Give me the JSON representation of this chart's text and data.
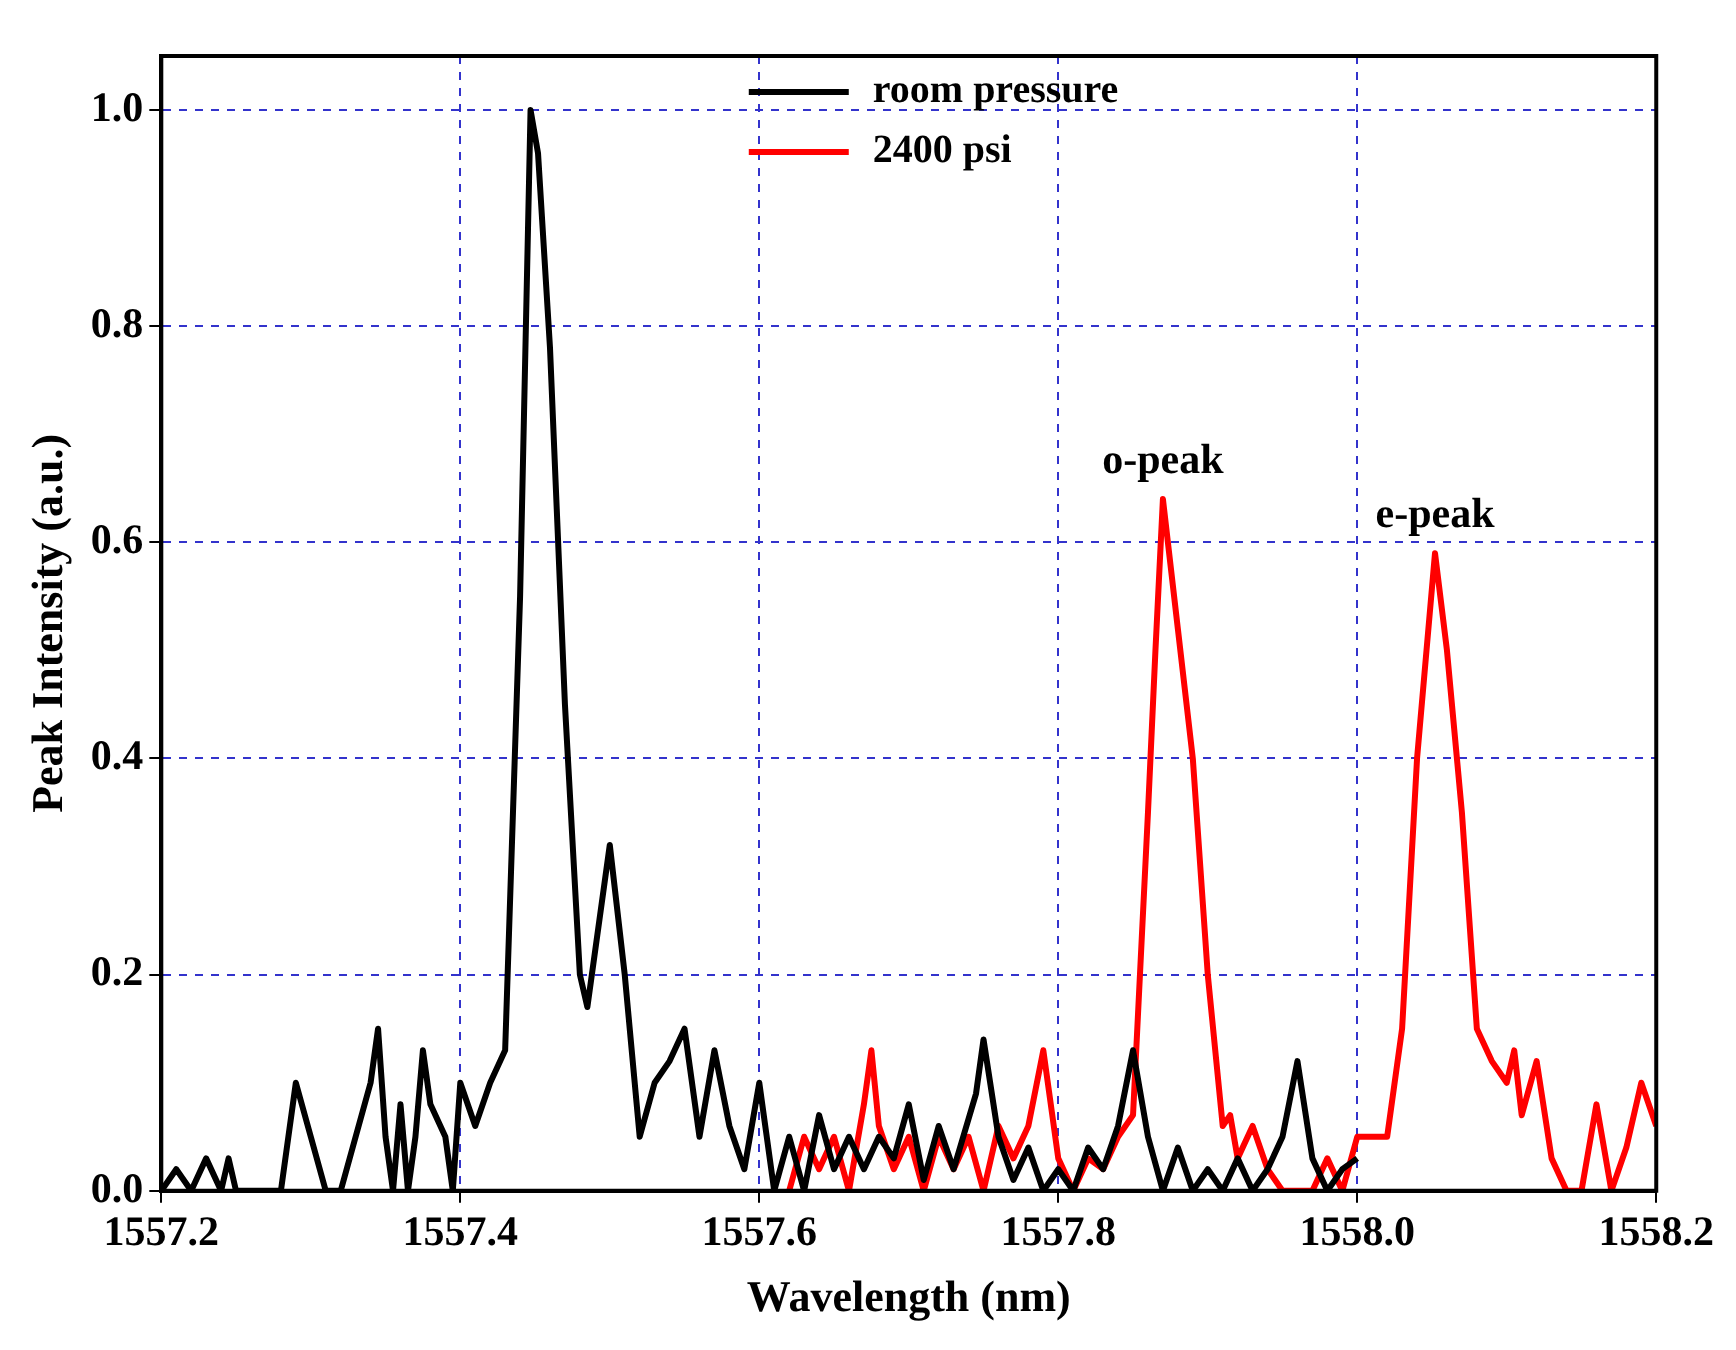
{
  "chart_data": {
    "type": "line",
    "xlabel": "Wavelength (nm)",
    "ylabel": "Peak Intensity (a.u.)",
    "xlim": [
      1557.2,
      1558.2
    ],
    "xticks": [
      1557.2,
      1557.4,
      1557.6,
      1557.8,
      {
        "value": 1558,
        "label": "1558.0"
      },
      1558.2
    ],
    "ylim": [
      0,
      1.05
    ],
    "yticks": [
      {
        "value": 0,
        "label": "0.0"
      },
      0.2,
      0.4,
      0.6,
      0.8,
      {
        "value": 1,
        "label": "1.0"
      }
    ],
    "grid": true,
    "legend": "top",
    "line_style": "solid",
    "marker": "none",
    "annotations": [
      {
        "text": "o-peak",
        "x": 1557.87,
        "y": 0.64
      },
      {
        "text": "e-peak",
        "x": 1558.052,
        "y": 0.59
      }
    ],
    "series": [
      {
        "name": "room pressure",
        "color": "#000000",
        "x": [
          1557.2,
          1557.21,
          1557.22,
          1557.23,
          1557.24,
          1557.245,
          1557.25,
          1557.28,
          1557.29,
          1557.3,
          1557.31,
          1557.32,
          1557.33,
          1557.34,
          1557.345,
          1557.35,
          1557.355,
          1557.36,
          1557.365,
          1557.37,
          1557.375,
          1557.38,
          1557.39,
          1557.395,
          1557.4,
          1557.41,
          1557.42,
          1557.43,
          1557.44,
          1557.447,
          1557.452,
          1557.46,
          1557.47,
          1557.48,
          1557.485,
          1557.5,
          1557.51,
          1557.52,
          1557.53,
          1557.54,
          1557.55,
          1557.56,
          1557.57,
          1557.58,
          1557.59,
          1557.6,
          1557.61,
          1557.62,
          1557.63,
          1557.64,
          1557.65,
          1557.66,
          1557.67,
          1557.68,
          1557.69,
          1557.7,
          1557.71,
          1557.72,
          1557.73,
          1557.745,
          1557.75,
          1557.76,
          1557.77,
          1557.78,
          1557.79,
          1557.8,
          1557.81,
          1557.82,
          1557.83,
          1557.84,
          1557.85,
          1557.86,
          1557.87,
          1557.88,
          1557.89,
          1557.9,
          1557.91,
          1557.92,
          1557.93,
          1557.94,
          1557.95,
          1557.96,
          1557.97,
          1557.98,
          1557.99,
          1558.0
        ],
        "values": [
          0,
          0.02,
          0,
          0.03,
          0,
          0.03,
          0,
          0,
          0.1,
          0.05,
          0,
          0,
          0.05,
          0.1,
          0.15,
          0.05,
          0,
          0.08,
          0,
          0.05,
          0.13,
          0.08,
          0.05,
          0,
          0.1,
          0.06,
          0.1,
          0.13,
          0.55,
          1.0,
          0.96,
          0.78,
          0.45,
          0.2,
          0.17,
          0.32,
          0.2,
          0.05,
          0.1,
          0.12,
          0.15,
          0.05,
          0.13,
          0.06,
          0.02,
          0.1,
          0,
          0.05,
          0,
          0.07,
          0.02,
          0.05,
          0.02,
          0.05,
          0.03,
          0.08,
          0.01,
          0.06,
          0.02,
          0.09,
          0.14,
          0.05,
          0.01,
          0.04,
          0,
          0.02,
          0,
          0.04,
          0.02,
          0.06,
          0.13,
          0.05,
          0,
          0.04,
          0,
          0.02,
          0,
          0.03,
          0,
          0.02,
          0.05,
          0.12,
          0.03,
          0,
          0.02,
          0.03
        ]
      },
      {
        "name": "2400 psi",
        "color": "#ff0000",
        "x": [
          1557.62,
          1557.63,
          1557.64,
          1557.65,
          1557.66,
          1557.67,
          1557.675,
          1557.68,
          1557.69,
          1557.7,
          1557.71,
          1557.72,
          1557.73,
          1557.74,
          1557.75,
          1557.76,
          1557.77,
          1557.78,
          1557.79,
          1557.8,
          1557.81,
          1557.82,
          1557.83,
          1557.84,
          1557.85,
          1557.86,
          1557.865,
          1557.87,
          1557.88,
          1557.89,
          1557.9,
          1557.91,
          1557.915,
          1557.92,
          1557.93,
          1557.94,
          1557.95,
          1557.97,
          1557.98,
          1557.99,
          1558.0,
          1558.01,
          1558.02,
          1558.03,
          1558.04,
          1558.052,
          1558.06,
          1558.07,
          1558.08,
          1558.09,
          1558.1,
          1558.105,
          1558.11,
          1558.12,
          1558.13,
          1558.14,
          1558.15,
          1558.16,
          1558.17,
          1558.18,
          1558.19,
          1558.2
        ],
        "values": [
          0,
          0.05,
          0.02,
          0.05,
          0,
          0.08,
          0.13,
          0.06,
          0.02,
          0.05,
          0,
          0.05,
          0.02,
          0.05,
          0,
          0.06,
          0.03,
          0.06,
          0.13,
          0.03,
          0,
          0.03,
          0.02,
          0.05,
          0.07,
          0.35,
          0.5,
          0.64,
          0.52,
          0.4,
          0.2,
          0.06,
          0.07,
          0.03,
          0.06,
          0.02,
          0,
          0,
          0.03,
          0,
          0.05,
          0.05,
          0.05,
          0.15,
          0.4,
          0.59,
          0.5,
          0.35,
          0.15,
          0.12,
          0.1,
          0.13,
          0.07,
          0.12,
          0.03,
          0,
          0,
          0.08,
          0,
          0.04,
          0.1,
          0.06
        ]
      }
    ]
  }
}
